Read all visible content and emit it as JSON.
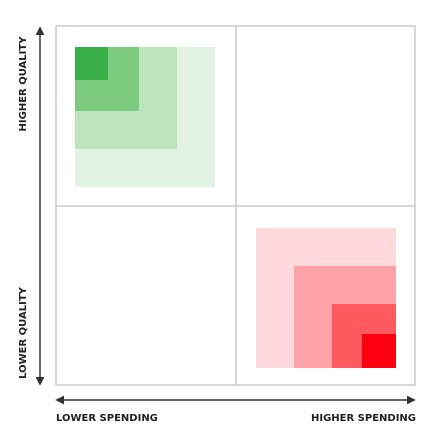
{
  "axes": {
    "y_top": "HIGHER QUALITY",
    "y_bottom": "LOWER QUALITY",
    "x_left": "LOWER SPENDING",
    "x_right": "HIGHER SPENDING"
  }
}
